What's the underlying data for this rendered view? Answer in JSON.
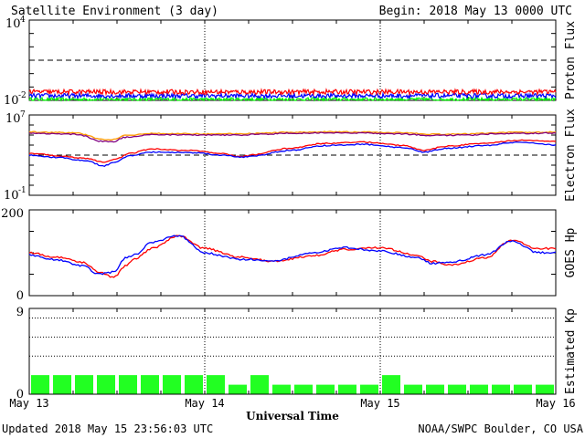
{
  "header": {
    "title": "Satellite Environment (3 day)",
    "begin": "Begin:  2018 May 13 0000 UTC"
  },
  "footer": {
    "updated": "Updated 2018 May 15 23:56:03 UTC",
    "source": "NOAA/SWPC Boulder, CO USA"
  },
  "colors": {
    "red": "#ff0000",
    "blue": "#0000ff",
    "green": "#00ff00",
    "orange": "#ff9900",
    "purple": "#800080",
    "kp_bar": "#22ff22"
  },
  "chart_data": [
    {
      "id": "proton",
      "type": "line",
      "ylabel": "Proton Flux",
      "yscale": "log",
      "ylim": [
        0.01,
        10000
      ],
      "yticks": [
        "10",
        "10"
      ],
      "yticks_exp": [
        "4",
        "-2"
      ],
      "threshold": 10,
      "xlim": [
        0,
        3
      ],
      "series": [
        {
          "color": "red",
          "base": 0.043,
          "spread": 0.35
        },
        {
          "color": "blue",
          "base": 0.022,
          "spread": 0.35
        },
        {
          "color": "green",
          "base": 0.012,
          "spread": 0.25
        }
      ]
    },
    {
      "id": "electron",
      "type": "line",
      "ylabel": "Electron Flux",
      "yscale": "log",
      "ylim": [
        0.1,
        10000000
      ],
      "yticks": [
        "10",
        "10"
      ],
      "yticks_exp": [
        "7",
        "-1"
      ],
      "threshold": 1000,
      "xlim": [
        0,
        3
      ],
      "series": [
        {
          "color": "orange",
          "x": [
            0,
            0.25,
            0.4,
            0.48,
            0.55,
            0.7,
            1.0,
            1.2,
            1.3,
            1.5,
            1.7,
            1.9,
            2.1,
            2.3,
            2.5,
            2.7,
            2.9,
            3.0
          ],
          "y": [
            200000,
            170000,
            40000,
            35000,
            90000,
            150000,
            130000,
            130000,
            150000,
            190000,
            210000,
            200000,
            170000,
            120000,
            130000,
            180000,
            190000,
            200000
          ]
        },
        {
          "color": "purple",
          "x": [
            0,
            0.25,
            0.4,
            0.48,
            0.55,
            0.7,
            1.0,
            1.2,
            1.3,
            1.5,
            1.7,
            1.9,
            2.1,
            2.3,
            2.5,
            2.7,
            2.9,
            3.0
          ],
          "y": [
            150000,
            120000,
            25000,
            20000,
            60000,
            110000,
            100000,
            100000,
            120000,
            150000,
            170000,
            160000,
            130000,
            90000,
            100000,
            140000,
            150000,
            160000
          ]
        },
        {
          "color": "red",
          "x": [
            0,
            0.15,
            0.3,
            0.42,
            0.5,
            0.58,
            0.7,
            0.9,
            1.1,
            1.2,
            1.3,
            1.5,
            1.7,
            1.9,
            2.1,
            2.25,
            2.4,
            2.6,
            2.8,
            3.0
          ],
          "y": [
            1500,
            900,
            500,
            200,
            400,
            1500,
            4000,
            3000,
            1400,
            700,
            1200,
            5000,
            15000,
            20000,
            10000,
            3000,
            8000,
            15000,
            30000,
            25000
          ]
        },
        {
          "color": "blue",
          "x": [
            0,
            0.15,
            0.3,
            0.42,
            0.5,
            0.58,
            0.7,
            0.9,
            1.1,
            1.2,
            1.3,
            1.5,
            1.7,
            1.9,
            2.1,
            2.25,
            2.4,
            2.6,
            2.8,
            3.0
          ],
          "y": [
            1000,
            600,
            300,
            80,
            200,
            900,
            2000,
            1800,
            1000,
            600,
            900,
            3000,
            9000,
            12000,
            6000,
            2000,
            5000,
            9000,
            20000,
            10000
          ]
        }
      ]
    },
    {
      "id": "hp",
      "type": "line",
      "ylabel": "GOES Hp",
      "ylim": [
        0,
        200
      ],
      "yticks": [
        "200",
        "0"
      ],
      "xlim": [
        0,
        3
      ],
      "series": [
        {
          "color": "red",
          "x": [
            0,
            0.15,
            0.3,
            0.4,
            0.48,
            0.55,
            0.6,
            0.7,
            0.85,
            1.0,
            1.2,
            1.4,
            1.6,
            1.8,
            2.0,
            2.2,
            2.3,
            2.4,
            2.6,
            2.75,
            2.9,
            3.0
          ],
          "y": [
            100,
            90,
            78,
            55,
            42,
            70,
            85,
            110,
            140,
            110,
            90,
            80,
            92,
            108,
            112,
            95,
            80,
            72,
            88,
            130,
            110,
            110
          ]
        },
        {
          "color": "blue",
          "x": [
            0,
            0.15,
            0.3,
            0.4,
            0.48,
            0.55,
            0.6,
            0.7,
            0.85,
            1.0,
            1.2,
            1.4,
            1.6,
            1.8,
            2.0,
            2.2,
            2.3,
            2.4,
            2.6,
            2.75,
            2.9,
            3.0
          ],
          "y": [
            95,
            84,
            70,
            50,
            55,
            88,
            95,
            125,
            140,
            100,
            85,
            82,
            98,
            112,
            104,
            90,
            75,
            78,
            95,
            128,
            100,
            100
          ]
        }
      ]
    },
    {
      "id": "kp",
      "type": "bar",
      "ylabel": "Estimated Kp",
      "ylim": [
        0,
        9
      ],
      "yticks": [
        "9",
        "0"
      ],
      "gridlines": [
        4,
        6,
        8
      ],
      "values": [
        2,
        2,
        2,
        2,
        2,
        2,
        2,
        2,
        2,
        1,
        2,
        1,
        1,
        1,
        1,
        1,
        2,
        1,
        1,
        1,
        1,
        1,
        1,
        1
      ]
    }
  ],
  "x_axis": {
    "title": "Universal Time",
    "ticks": [
      "May 13",
      "May 14",
      "May 15",
      "May 16"
    ]
  }
}
